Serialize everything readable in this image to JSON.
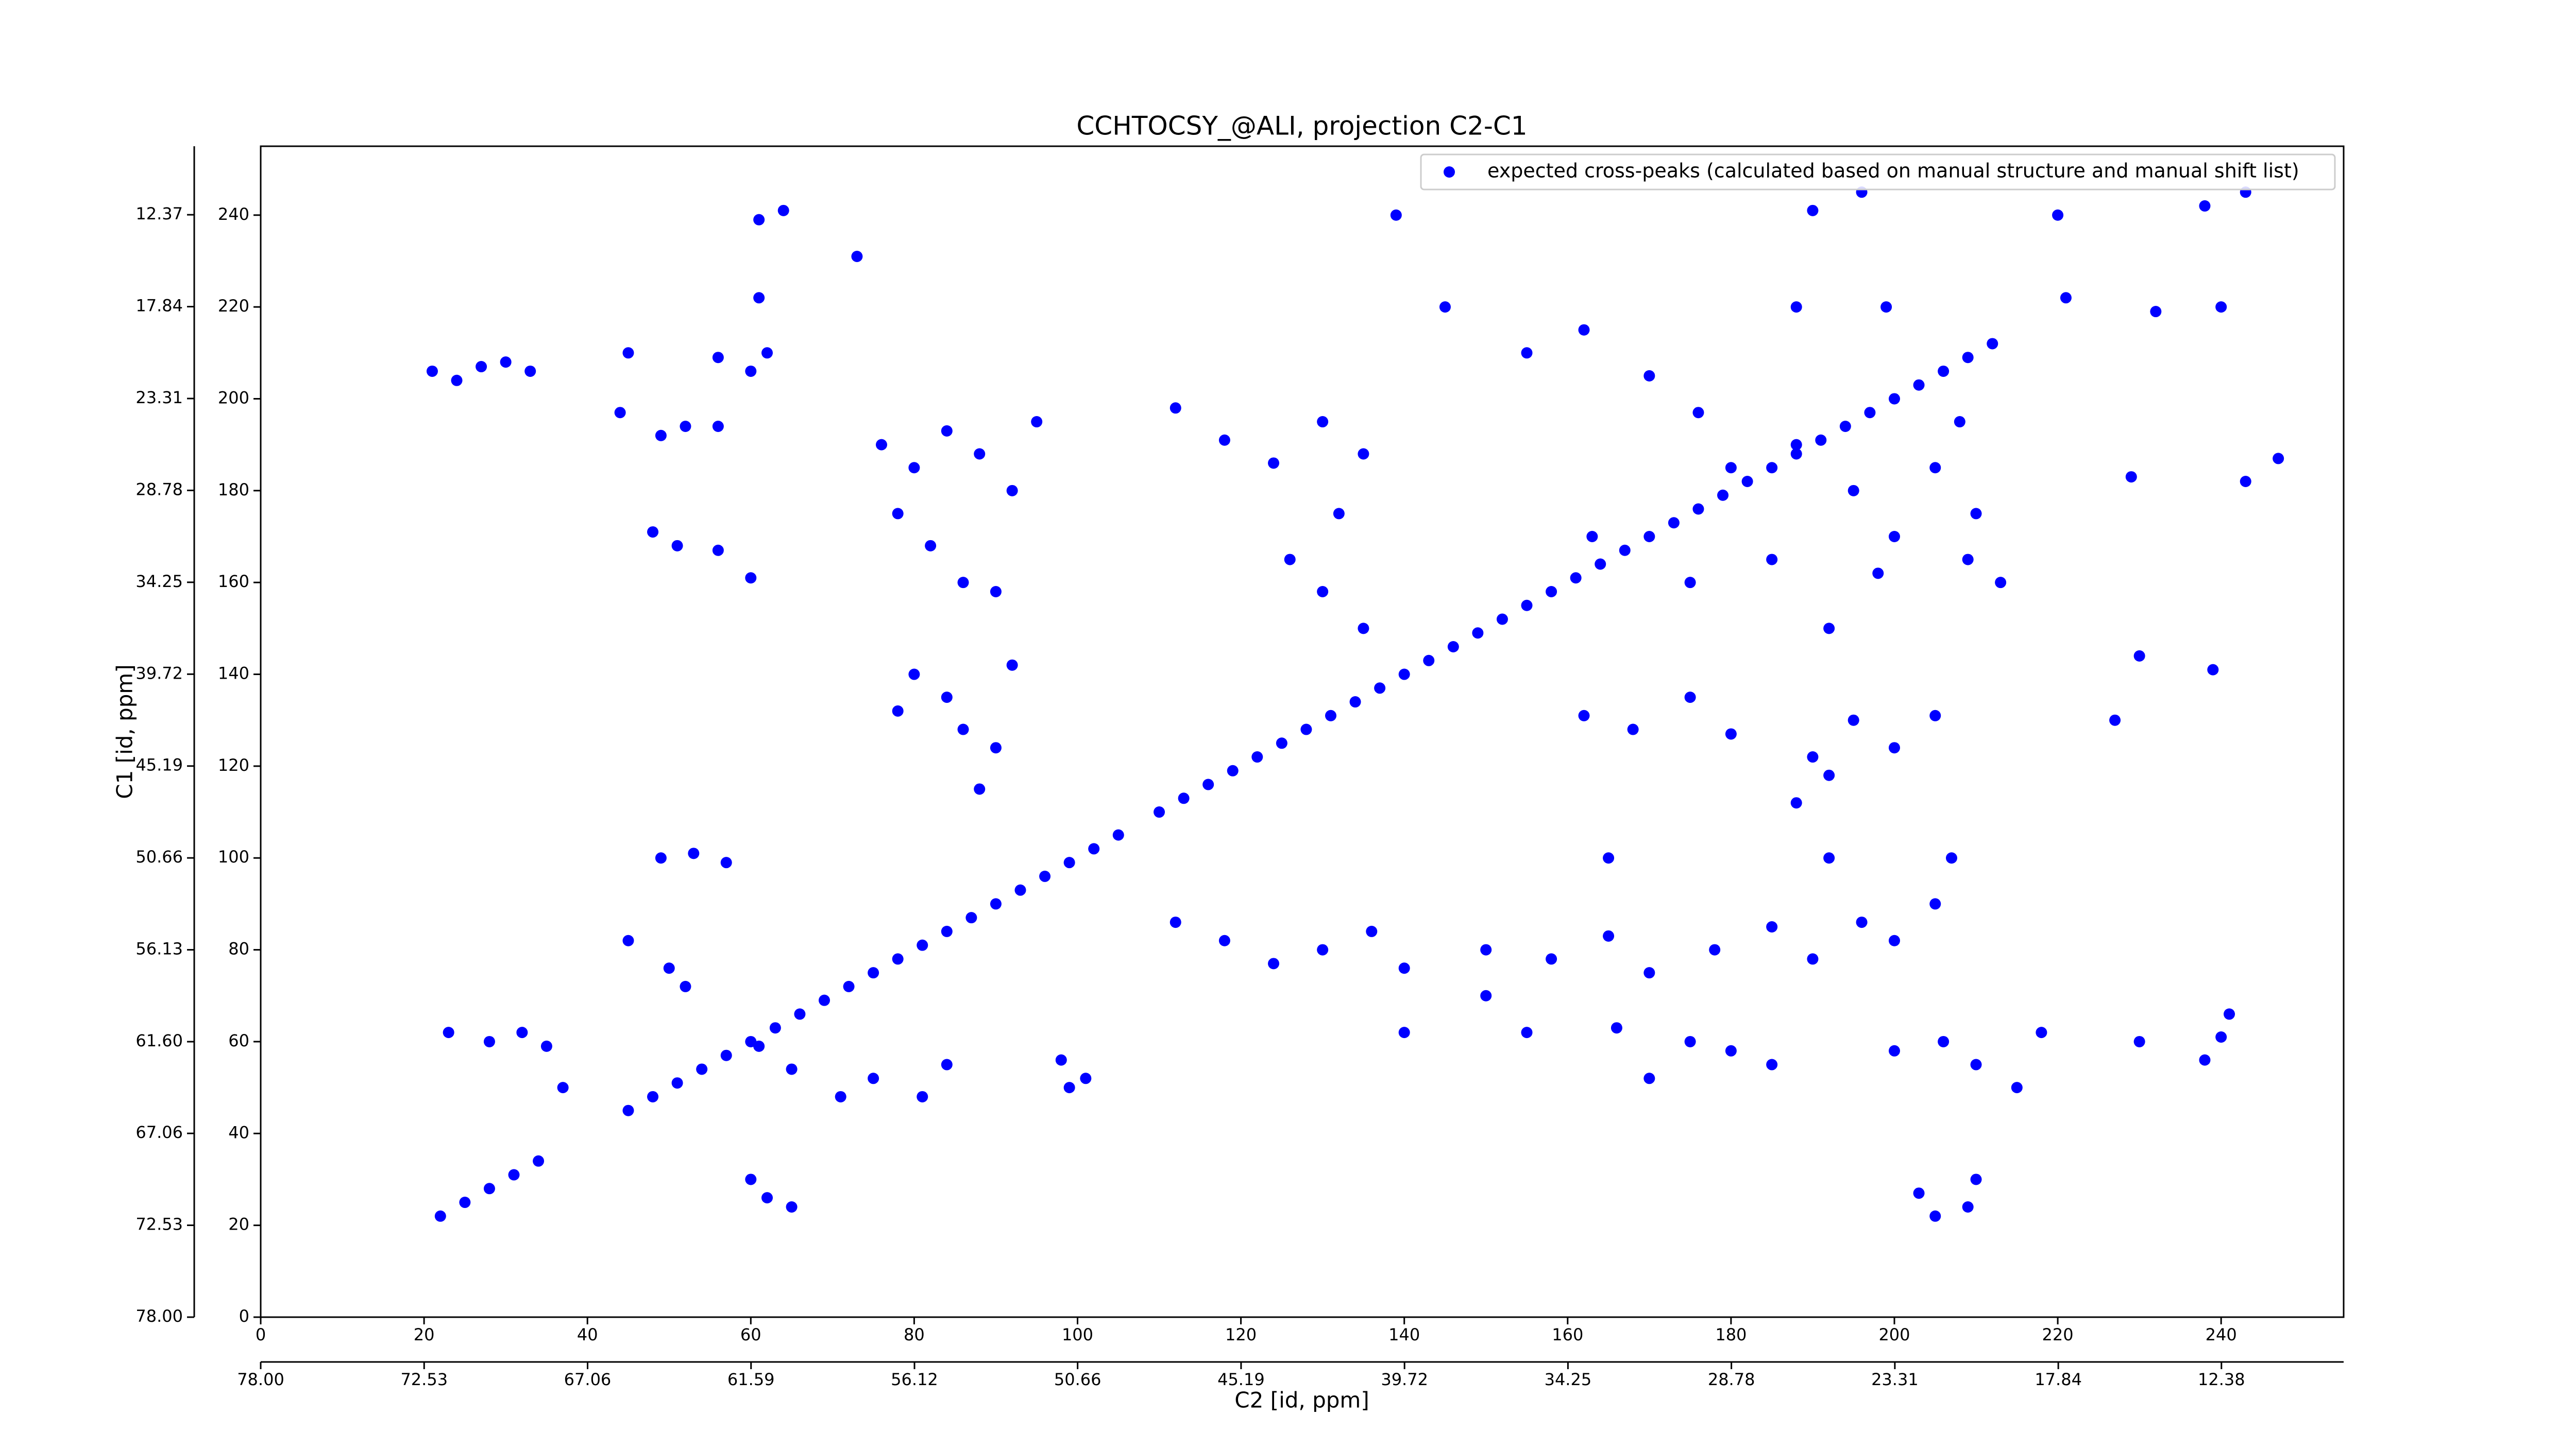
{
  "chart_data": {
    "type": "scatter",
    "title": "CCHTOCSY_@ALI, projection C2-C1",
    "x_label": "C2 [id, ppm]",
    "y_label": "C1 [id, ppm]",
    "xlim": [
      0,
      255
    ],
    "ylim": [
      0,
      255
    ],
    "xticks": [
      0,
      20,
      40,
      60,
      80,
      100,
      120,
      140,
      160,
      180,
      200,
      220,
      240
    ],
    "yticks": [
      0,
      20,
      40,
      60,
      80,
      100,
      120,
      140,
      160,
      180,
      200,
      220,
      240
    ],
    "x2lim": [
      78.0,
      8.29
    ],
    "x2ticks": [
      {
        "value": 78.0,
        "label": "78.00"
      },
      {
        "value": 72.53,
        "label": "72.53"
      },
      {
        "value": 67.06,
        "label": "67.06"
      },
      {
        "value": 61.59,
        "label": "61.59"
      },
      {
        "value": 56.12,
        "label": "56.12"
      },
      {
        "value": 50.66,
        "label": "50.66"
      },
      {
        "value": 45.19,
        "label": "45.19"
      },
      {
        "value": 39.72,
        "label": "39.72"
      },
      {
        "value": 34.25,
        "label": "34.25"
      },
      {
        "value": 28.78,
        "label": "28.78"
      },
      {
        "value": 23.31,
        "label": "23.31"
      },
      {
        "value": 17.84,
        "label": "17.84"
      },
      {
        "value": 12.38,
        "label": "12.38"
      }
    ],
    "y2lim": [
      78.0,
      8.29
    ],
    "y2ticks": [
      {
        "value": 78.0,
        "label": "78.00"
      },
      {
        "value": 72.53,
        "label": "72.53"
      },
      {
        "value": 67.06,
        "label": "67.06"
      },
      {
        "value": 61.6,
        "label": "61.60"
      },
      {
        "value": 56.13,
        "label": "56.13"
      },
      {
        "value": 50.66,
        "label": "50.66"
      },
      {
        "value": 45.19,
        "label": "45.19"
      },
      {
        "value": 39.72,
        "label": "39.72"
      },
      {
        "value": 34.25,
        "label": "34.25"
      },
      {
        "value": 28.78,
        "label": "28.78"
      },
      {
        "value": 23.31,
        "label": "23.31"
      },
      {
        "value": 17.84,
        "label": "17.84"
      },
      {
        "value": 12.37,
        "label": "12.37"
      }
    ],
    "legend": "upper right",
    "series": [
      {
        "name": "expected cross-peaks (calculated based on manual structure and manual shift list)",
        "color": "#0000ff",
        "x": [
          22,
          25,
          28,
          31,
          34,
          45,
          48,
          51,
          54,
          57,
          60,
          63,
          66,
          69,
          72,
          75,
          78,
          81,
          84,
          87,
          90,
          93,
          96,
          99,
          102,
          105,
          110,
          113,
          116,
          119,
          122,
          125,
          128,
          131,
          134,
          137,
          140,
          143,
          146,
          149,
          152,
          155,
          158,
          161,
          164,
          167,
          170,
          173,
          176,
          179,
          182,
          185,
          188,
          191,
          194,
          197,
          200,
          203,
          206,
          209,
          212,
          21,
          24,
          27,
          30,
          33,
          45,
          56,
          60,
          62,
          61,
          64,
          73,
          61,
          56,
          49,
          52,
          44,
          48,
          51,
          56,
          60,
          76,
          80,
          84,
          88,
          92,
          95,
          78,
          82,
          86,
          90,
          80,
          84,
          86,
          90,
          92,
          78,
          88,
          49,
          53,
          57,
          23,
          28,
          32,
          35,
          37,
          45,
          50,
          52,
          61,
          65,
          71,
          75,
          81,
          84,
          60,
          62,
          65,
          98,
          101,
          99,
          112,
          118,
          124,
          130,
          135,
          132,
          126,
          130,
          135,
          155,
          162,
          170,
          176,
          180,
          188,
          195,
          200,
          205,
          208,
          210,
          163,
          175,
          185,
          192,
          198,
          209,
          213,
          190,
          196,
          220,
          238,
          243,
          232,
          240,
          221,
          188,
          199,
          145,
          139,
          162,
          168,
          175,
          180,
          190,
          195,
          200,
          205,
          188,
          192,
          112,
          118,
          124,
          130,
          136,
          140,
          150,
          158,
          165,
          170,
          178,
          185,
          190,
          196,
          200,
          205,
          192,
          207,
          165,
          180,
          185,
          200,
          206,
          210,
          218,
          230,
          241,
          215,
          166,
          170,
          175,
          140,
          155,
          150,
          203,
          205,
          209,
          210,
          247,
          243,
          229,
          239,
          230,
          227,
          240,
          238
        ],
        "values": [
          22,
          25,
          28,
          31,
          34,
          45,
          48,
          51,
          54,
          57,
          60,
          63,
          66,
          69,
          72,
          75,
          78,
          81,
          84,
          87,
          90,
          93,
          96,
          99,
          102,
          105,
          110,
          113,
          116,
          119,
          122,
          125,
          128,
          131,
          134,
          137,
          140,
          143,
          146,
          149,
          152,
          155,
          158,
          161,
          164,
          167,
          170,
          173,
          176,
          179,
          182,
          185,
          188,
          191,
          194,
          197,
          200,
          203,
          206,
          209,
          212,
          206,
          204,
          207,
          208,
          206,
          210,
          209,
          206,
          210,
          239,
          241,
          231,
          222,
          194,
          192,
          194,
          197,
          171,
          168,
          167,
          161,
          190,
          185,
          193,
          188,
          180,
          195,
          175,
          168,
          160,
          158,
          140,
          135,
          128,
          124,
          142,
          132,
          115,
          100,
          101,
          99,
          62,
          60,
          62,
          59,
          50,
          82,
          76,
          72,
          59,
          54,
          48,
          52,
          48,
          55,
          30,
          26,
          24,
          56,
          52,
          50,
          198,
          191,
          186,
          195,
          188,
          175,
          165,
          158,
          150,
          210,
          215,
          205,
          197,
          185,
          190,
          180,
          170,
          185,
          195,
          175,
          170,
          160,
          165,
          150,
          162,
          165,
          160,
          241,
          245,
          240,
          242,
          245,
          219,
          220,
          222,
          220,
          220,
          220,
          240,
          131,
          128,
          135,
          127,
          122,
          130,
          124,
          131,
          112,
          118,
          86,
          82,
          77,
          80,
          84,
          76,
          80,
          78,
          83,
          75,
          80,
          85,
          78,
          86,
          82,
          90,
          100,
          100,
          100,
          58,
          55,
          58,
          60,
          55,
          62,
          60,
          66,
          50,
          63,
          52,
          60,
          62,
          62,
          70,
          27,
          22,
          24,
          30,
          187,
          182,
          183,
          141,
          144,
          130,
          61,
          56
        ]
      }
    ]
  }
}
